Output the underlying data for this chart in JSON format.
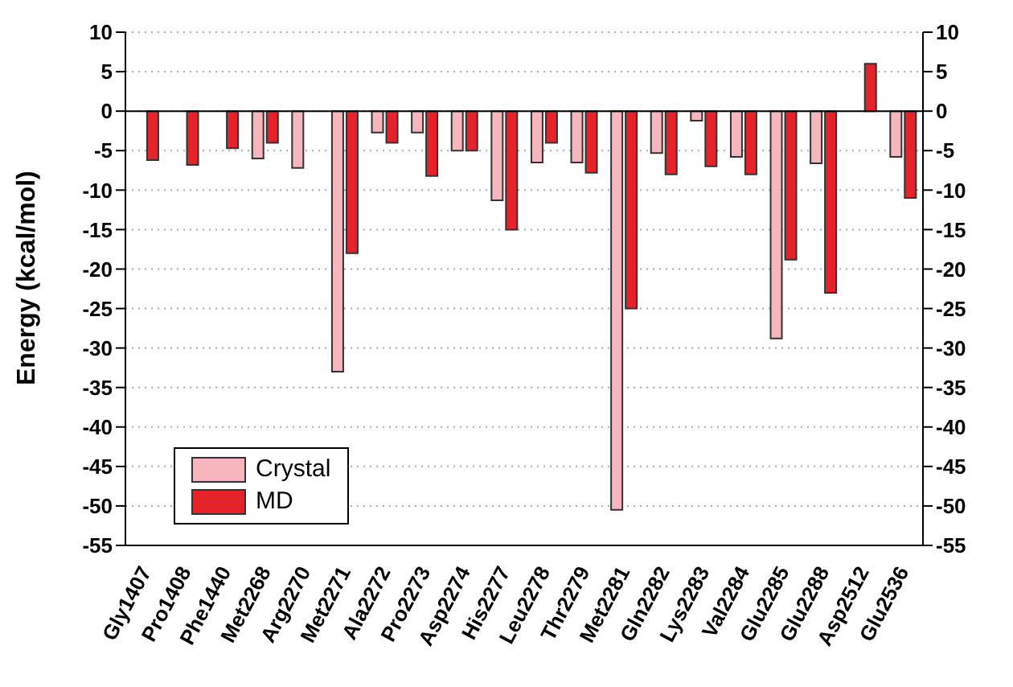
{
  "chart_data": {
    "type": "bar",
    "ylabel": "Energy (kcal/mol)",
    "categories": [
      "Gly1407",
      "Pro1408",
      "Phe1440",
      "Met2268",
      "Arg2270",
      "Met2271",
      "Ala2272",
      "Pro2273",
      "Asp2274",
      "His2277",
      "Leu2278",
      "Thr2279",
      "Met2281",
      "Gln2282",
      "Lys2283",
      "Val2284",
      "Glu2285",
      "Glu2288",
      "Asp2512",
      "Glu2536"
    ],
    "series": [
      {
        "name": "Crystal",
        "color": "#f7b6bd",
        "values": [
          null,
          null,
          null,
          -6,
          -7.2,
          -33,
          -2.7,
          -2.7,
          -5,
          -11.3,
          -6.5,
          -6.5,
          -50.5,
          -5.3,
          -1.2,
          -5.8,
          -28.8,
          -6.6,
          null,
          -5.8
        ]
      },
      {
        "name": "MD",
        "color": "#e5232a",
        "values": [
          -6.2,
          -6.8,
          -4.7,
          -4,
          null,
          -18,
          -4,
          -8.2,
          -5,
          -15,
          -4,
          -7.8,
          -25,
          -8,
          -7,
          -8,
          -18.8,
          -23,
          6,
          -11
        ]
      }
    ],
    "ylim": [
      -55,
      10
    ],
    "yticks": [
      -55,
      -50,
      -45,
      -40,
      -35,
      -30,
      -25,
      -20,
      -15,
      -10,
      -5,
      0,
      5,
      10
    ],
    "y2lim": [
      -55,
      10
    ],
    "y2ticks": [
      -55,
      -50,
      -45,
      -40,
      -35,
      -30,
      -25,
      -20,
      -15,
      -10,
      -5,
      0,
      5,
      10
    ],
    "grid": "y",
    "legend": "bottom left"
  }
}
